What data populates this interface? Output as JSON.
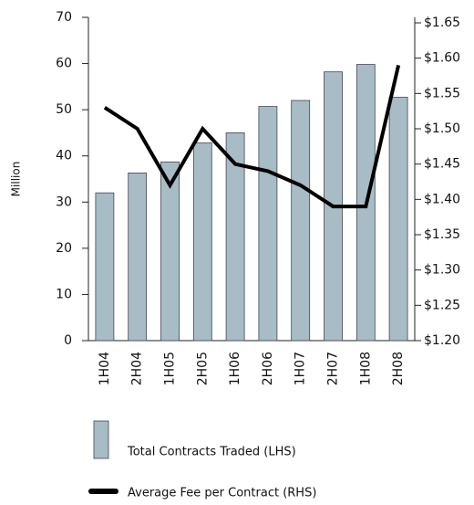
{
  "chart_data": {
    "type": "bar",
    "categories": [
      "1H04",
      "2H04",
      "1H05",
      "2H05",
      "1H06",
      "2H06",
      "1H07",
      "2H07",
      "1H08",
      "2H08"
    ],
    "ylabel": "Million",
    "series": [
      {
        "name": "Total Contracts Traded (LHS)",
        "type": "bar",
        "color": "#a7bcc4",
        "values": [
          32,
          36.3,
          38.7,
          42.8,
          45,
          50.7,
          52,
          58.2,
          59.8,
          52.7
        ]
      },
      {
        "name": "Average Fee per Contract (RHS)",
        "type": "line",
        "axis": "y2",
        "color": "#000000",
        "values": [
          1.53,
          1.5,
          1.42,
          1.5,
          1.45,
          1.44,
          1.42,
          1.39,
          1.39,
          1.59
        ]
      }
    ],
    "ylim": [
      0,
      70
    ],
    "yticks": [
      0,
      10,
      20,
      30,
      40,
      50,
      60,
      70
    ],
    "y2lim": [
      1.2,
      1.65
    ],
    "y2ticks": [
      {
        "value": 1.2,
        "label": "$1.20"
      },
      {
        "value": 1.25,
        "label": "$1.25"
      },
      {
        "value": 1.3,
        "label": "$1.30"
      },
      {
        "value": 1.35,
        "label": "$1.35"
      },
      {
        "value": 1.4,
        "label": "$1.40"
      },
      {
        "value": 1.45,
        "label": "$1.45"
      },
      {
        "value": 1.5,
        "label": "$1.50"
      },
      {
        "value": 1.55,
        "label": "$1.55"
      },
      {
        "value": 1.6,
        "label": "$1.60"
      },
      {
        "value": 1.65,
        "label": "$1.65"
      }
    ],
    "grid": false
  }
}
